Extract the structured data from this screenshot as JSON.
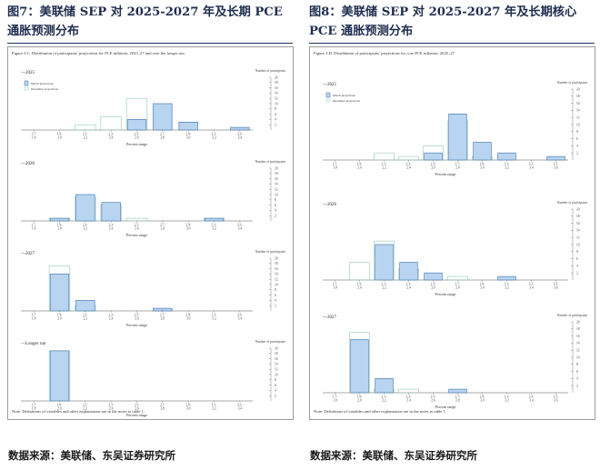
{
  "left": {
    "title": "图7：美联储 SEP 对 2025-2027 年及长期 PCE 通胀预测分布",
    "figure_caption": "Figure 3.C. Distribution of participants’ projections for PCE inflation, 2025–27 and over the longer run",
    "note": "Note: Definitions of variables and other explanations are in the notes to table 1.",
    "source": "数据来源：美联储、东吴证券研究所"
  },
  "right": {
    "title": "图8：美联储 SEP 对 2025-2027 年及长期核心 PCE 通胀预测分布",
    "figure_caption": "Figure 3.D. Distribution of participants’ projections for core PCE inflation, 2025–27",
    "note": "Note: Definitions of variables and other explanations are in the notes to table 1.",
    "source": "数据来源：美联储、东吴证券研究所"
  },
  "chart_data": [
    {
      "type": "bar",
      "panel": "left",
      "title": "2025",
      "categories": [
        "1.7-\n1.8",
        "1.9-\n2.0",
        "2.1-\n2.2",
        "2.3-\n2.4",
        "2.5-\n2.6",
        "2.7-\n2.8",
        "2.9-\n3.0",
        "3.1-\n3.2",
        "3.3-\n3.4"
      ],
      "series": [
        {
          "name": "March projections",
          "values": [
            0,
            0,
            0,
            0,
            4,
            10,
            3,
            0,
            1
          ]
        },
        {
          "name": "December projections",
          "values": [
            0,
            0,
            2,
            5,
            12,
            0,
            0,
            0,
            0
          ]
        }
      ],
      "xlabel": "Percent range",
      "ylabel": "Number of participants",
      "ylim": [
        0,
        20
      ],
      "yticks": [
        2,
        4,
        6,
        8,
        10,
        12,
        14,
        16,
        18,
        20
      ],
      "legend": "top-left"
    },
    {
      "type": "bar",
      "panel": "left",
      "title": "2026",
      "categories": [
        "1.7-\n1.8",
        "1.9-\n2.0",
        "2.1-\n2.2",
        "2.3-\n2.4",
        "2.5-\n2.6",
        "2.7-\n2.8",
        "2.9-\n3.0",
        "3.1-\n3.2",
        "3.3-\n3.4"
      ],
      "series": [
        {
          "name": "March projections",
          "values": [
            0,
            1,
            10,
            7,
            0,
            0,
            0,
            1,
            0
          ]
        },
        {
          "name": "December projections",
          "values": [
            0,
            1,
            9,
            6,
            1,
            0,
            0,
            1,
            0
          ]
        }
      ],
      "xlabel": "Percent range",
      "ylabel": "Number of participants",
      "ylim": [
        0,
        20
      ],
      "yticks": [
        2,
        4,
        6,
        8,
        10,
        12,
        14,
        16,
        18,
        20
      ]
    },
    {
      "type": "bar",
      "panel": "left",
      "title": "2027",
      "categories": [
        "1.7-\n1.8",
        "1.9-\n2.0",
        "2.1-\n2.2",
        "2.3-\n2.4",
        "2.5-\n2.6",
        "2.7-\n2.8",
        "2.9-\n3.0",
        "3.1-\n3.2",
        "3.3-\n3.4"
      ],
      "series": [
        {
          "name": "March projections",
          "values": [
            0,
            14,
            4,
            0,
            0,
            1,
            0,
            0,
            0
          ]
        },
        {
          "name": "December projections",
          "values": [
            0,
            17,
            2,
            0,
            0,
            0,
            0,
            0,
            0
          ]
        }
      ],
      "xlabel": "Percent range",
      "ylabel": "Number of participants",
      "ylim": [
        0,
        20
      ],
      "yticks": [
        2,
        4,
        6,
        8,
        10,
        12,
        14,
        16,
        18,
        20
      ]
    },
    {
      "type": "bar",
      "panel": "left",
      "title": "Longer run",
      "categories": [
        "1.7-\n1.8",
        "1.9-\n2.0",
        "2.1-\n2.2",
        "2.3-\n2.4",
        "2.5-\n2.6",
        "2.7-\n2.8",
        "2.9-\n3.0",
        "3.1-\n3.2",
        "3.3-\n3.4"
      ],
      "series": [
        {
          "name": "March projections",
          "values": [
            0,
            19,
            0,
            0,
            0,
            0,
            0,
            0,
            0
          ]
        },
        {
          "name": "December projections",
          "values": [
            0,
            19,
            0,
            0,
            0,
            0,
            0,
            0,
            0
          ]
        }
      ],
      "xlabel": "Percent range",
      "ylabel": "Number of participants",
      "ylim": [
        0,
        20
      ],
      "yticks": [
        2,
        4,
        6,
        8,
        10,
        12,
        14,
        16,
        18,
        20
      ]
    },
    {
      "type": "bar",
      "panel": "right",
      "title": "2025",
      "categories": [
        "1.7-\n1.8",
        "1.9-\n2.0",
        "2.1-\n2.2",
        "2.3-\n2.4",
        "2.5-\n2.6",
        "2.7-\n2.8",
        "2.9-\n3.0",
        "3.1-\n3.2",
        "3.3-\n3.4",
        "3.5-\n3.6"
      ],
      "series": [
        {
          "name": "March projections",
          "values": [
            0,
            0,
            0,
            0,
            2,
            13,
            5,
            2,
            0,
            1
          ]
        },
        {
          "name": "December projections",
          "values": [
            0,
            0,
            2,
            1,
            4,
            11,
            1,
            0,
            0,
            0
          ]
        }
      ],
      "xlabel": "Percent range",
      "ylabel": "Number of participants",
      "ylim": [
        0,
        20
      ],
      "yticks": [
        2,
        4,
        6,
        8,
        10,
        12,
        14,
        16,
        18,
        20
      ],
      "legend": "top-left"
    },
    {
      "type": "bar",
      "panel": "right",
      "title": "2026",
      "categories": [
        "1.7-\n1.8",
        "1.9-\n2.0",
        "2.1-\n2.2",
        "2.3-\n2.4",
        "2.5-\n2.6",
        "2.7-\n2.8",
        "2.9-\n3.0",
        "3.1-\n3.2",
        "3.3-\n3.4",
        "3.5-\n3.6"
      ],
      "series": [
        {
          "name": "March projections",
          "values": [
            0,
            0,
            10,
            5,
            2,
            0,
            0,
            1,
            0,
            0
          ]
        },
        {
          "name": "December projections",
          "values": [
            0,
            5,
            11,
            3,
            0,
            1,
            0,
            0,
            0,
            0
          ]
        }
      ],
      "xlabel": "Percent range",
      "ylabel": "Number of participants",
      "ylim": [
        0,
        20
      ],
      "yticks": [
        2,
        4,
        6,
        8,
        10,
        12,
        14,
        16,
        18,
        20
      ]
    },
    {
      "type": "bar",
      "panel": "right",
      "title": "2027",
      "categories": [
        "1.7-\n1.8",
        "1.9-\n2.0",
        "2.1-\n2.2",
        "2.3-\n2.4",
        "2.5-\n2.6",
        "2.7-\n2.8",
        "2.9-\n3.0",
        "3.1-\n3.2",
        "3.3-\n3.4",
        "3.5-\n3.6"
      ],
      "series": [
        {
          "name": "March projections",
          "values": [
            0,
            15,
            4,
            0,
            0,
            1,
            0,
            0,
            0,
            0
          ]
        },
        {
          "name": "December projections",
          "values": [
            0,
            17,
            1,
            1,
            0,
            0,
            0,
            0,
            0,
            0
          ]
        }
      ],
      "xlabel": "Percent range",
      "ylabel": "Number of participants",
      "ylim": [
        0,
        20
      ],
      "yticks": [
        2,
        4,
        6,
        8,
        10,
        12,
        14,
        16,
        18,
        20
      ]
    }
  ],
  "colors": {
    "march_fill": "#b8d4f0",
    "march_stroke": "#3a6fa8",
    "december_outline": "#8ec9b8",
    "title_text": "#1f2d4e",
    "rule": "#1f3864"
  }
}
